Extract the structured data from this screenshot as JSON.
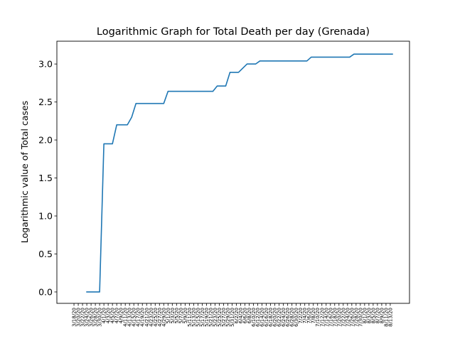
{
  "chart_data": {
    "type": "line",
    "title": "Logarithmic Graph for Total Death per day (Grenada)",
    "xlabel": "",
    "ylabel": "Logarithmic value of Total cases",
    "ylim": [
      -0.15,
      3.3
    ],
    "yticks": [
      0.0,
      0.5,
      1.0,
      1.5,
      2.0,
      2.5,
      3.0
    ],
    "ytick_labels": [
      "0.0",
      "0.5",
      "1.0",
      "1.5",
      "2.0",
      "2.5",
      "3.0"
    ],
    "grid": false,
    "x_first_label": "3/18/20",
    "x_last_label": "8/14/20",
    "x_categories": [
      "3/18/20",
      "3/19/20",
      "3/20/20",
      "3/21/20",
      "3/22/20",
      "3/23/20",
      "3/24/20",
      "3/25/20",
      "3/26/20",
      "3/27/20",
      "3/28/20",
      "3/29/20",
      "3/30/20",
      "3/31/20",
      "4/1/20",
      "4/2/20",
      "4/3/20",
      "4/4/20",
      "4/5/20",
      "4/6/20",
      "4/7/20",
      "4/8/20",
      "4/9/20",
      "4/10/20",
      "4/11/20",
      "4/12/20",
      "4/13/20",
      "4/14/20",
      "4/15/20",
      "4/16/20",
      "4/17/20",
      "4/18/20",
      "4/19/20",
      "4/20/20",
      "4/21/20",
      "4/22/20",
      "4/23/20",
      "4/24/20",
      "4/25/20",
      "4/26/20",
      "4/27/20",
      "4/28/20",
      "4/29/20",
      "4/30/20",
      "5/1/20",
      "5/2/20",
      "5/3/20",
      "5/4/20",
      "5/5/20",
      "5/6/20",
      "5/7/20",
      "5/8/20",
      "5/9/20",
      "5/10/20",
      "5/11/20",
      "5/12/20",
      "5/13/20",
      "5/14/20",
      "5/15/20",
      "5/16/20",
      "5/17/20",
      "5/18/20",
      "5/19/20",
      "5/20/20",
      "5/21/20",
      "5/22/20",
      "5/23/20",
      "5/24/20",
      "5/25/20",
      "5/26/20",
      "5/27/20",
      "5/28/20",
      "5/29/20",
      "5/30/20",
      "5/31/20",
      "6/1/20",
      "6/2/20",
      "6/3/20",
      "6/4/20",
      "6/5/20",
      "6/6/20",
      "6/7/20",
      "6/8/20",
      "6/9/20",
      "6/10/20",
      "6/11/20",
      "6/12/20",
      "6/13/20",
      "6/14/20",
      "6/15/20",
      "6/16/20",
      "6/17/20",
      "6/18/20",
      "6/19/20",
      "6/20/20",
      "6/21/20",
      "6/22/20",
      "6/23/20",
      "6/24/20",
      "6/25/20",
      "6/26/20",
      "6/27/20",
      "6/28/20",
      "6/29/20",
      "6/30/20",
      "7/1/20",
      "7/2/20",
      "7/3/20",
      "7/4/20",
      "7/5/20",
      "7/6/20",
      "7/7/20",
      "7/8/20",
      "7/9/20",
      "7/10/20",
      "7/11/20",
      "7/12/20",
      "7/13/20",
      "7/14/20",
      "7/15/20",
      "7/16/20",
      "7/17/20",
      "7/18/20",
      "7/19/20",
      "7/20/20",
      "7/21/20",
      "7/22/20",
      "7/23/20",
      "7/24/20",
      "7/25/20",
      "7/26/20",
      "7/27/20",
      "7/28/20",
      "7/29/20",
      "7/30/20",
      "7/31/20",
      "8/1/20",
      "8/2/20",
      "8/3/20",
      "8/4/20",
      "8/5/20",
      "8/6/20",
      "8/7/20",
      "8/8/20",
      "8/9/20",
      "8/10/20",
      "8/11/20",
      "8/12/20",
      "8/13/20",
      "8/14/20"
    ],
    "x_tick_every": 2,
    "xlim_index": [
      -8,
      157
    ],
    "series": [
      {
        "color": "#1f77b4",
        "points": [
          {
            "x": "3/24/20",
            "y": 0.0
          },
          {
            "x": "3/30/20",
            "y": 0.0
          },
          {
            "x": "4/1/20",
            "y": 1.95
          },
          {
            "x": "4/5/20",
            "y": 1.95
          },
          {
            "x": "4/7/20",
            "y": 2.2
          },
          {
            "x": "4/12/20",
            "y": 2.2
          },
          {
            "x": "4/14/20",
            "y": 2.3
          },
          {
            "x": "4/16/20",
            "y": 2.48
          },
          {
            "x": "4/29/20",
            "y": 2.48
          },
          {
            "x": "5/1/20",
            "y": 2.64
          },
          {
            "x": "5/22/20",
            "y": 2.64
          },
          {
            "x": "5/24/20",
            "y": 2.71
          },
          {
            "x": "5/28/20",
            "y": 2.71
          },
          {
            "x": "5/30/20",
            "y": 2.89
          },
          {
            "x": "6/3/20",
            "y": 2.89
          },
          {
            "x": "6/7/20",
            "y": 3.0
          },
          {
            "x": "6/11/20",
            "y": 3.0
          },
          {
            "x": "6/13/20",
            "y": 3.04
          },
          {
            "x": "7/5/20",
            "y": 3.04
          },
          {
            "x": "7/7/20",
            "y": 3.09
          },
          {
            "x": "7/25/20",
            "y": 3.09
          },
          {
            "x": "7/27/20",
            "y": 3.13
          },
          {
            "x": "8/14/20",
            "y": 3.13
          }
        ]
      }
    ]
  }
}
